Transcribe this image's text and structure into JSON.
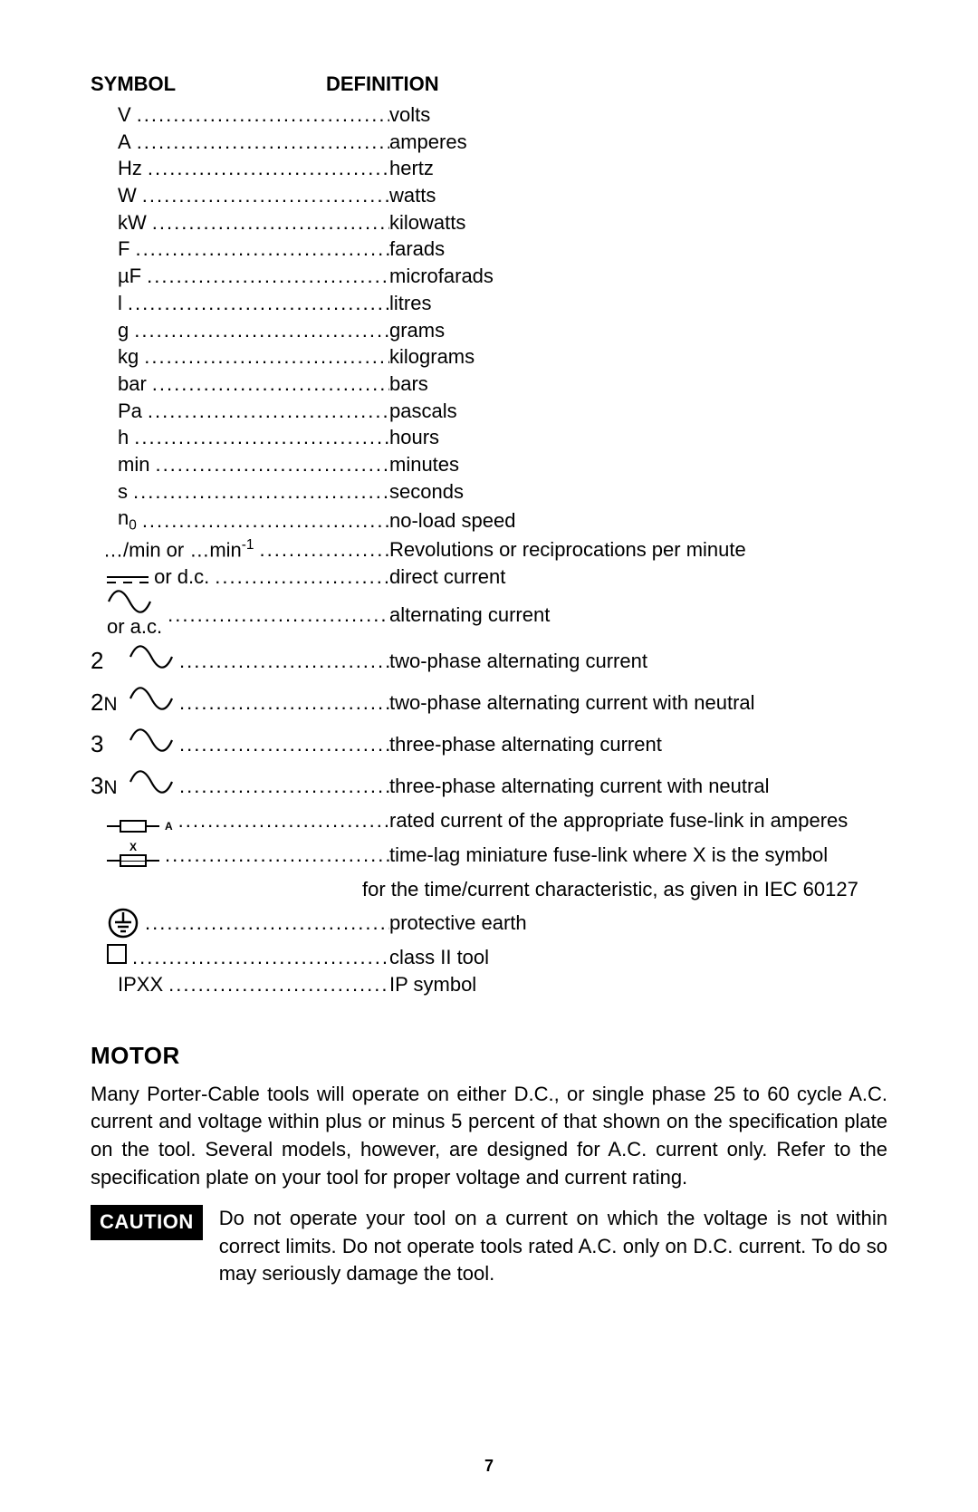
{
  "colors": {
    "background": "#ffffff",
    "text": "#000000",
    "caution_bg": "#000000",
    "caution_fg": "#ffffff"
  },
  "typography": {
    "body_fontsize_pt": 16,
    "header_fontsize_pt": 16,
    "section_title_fontsize_pt": 19
  },
  "headers": {
    "symbol": "SYMBOL",
    "definition": "DEFINITION"
  },
  "rows": [
    {
      "kind": "text",
      "symbol": "V",
      "definition": "volts"
    },
    {
      "kind": "text",
      "symbol": "A",
      "definition": "amperes"
    },
    {
      "kind": "text",
      "symbol": "Hz",
      "definition": "hertz"
    },
    {
      "kind": "text",
      "symbol": "W",
      "definition": "watts"
    },
    {
      "kind": "text",
      "symbol": "kW",
      "definition": "kilowatts"
    },
    {
      "kind": "text",
      "symbol": "F",
      "definition": "farads"
    },
    {
      "kind": "text",
      "symbol": "µF",
      "definition": "microfarads"
    },
    {
      "kind": "text",
      "symbol": "l",
      "definition": "litres"
    },
    {
      "kind": "text",
      "symbol": "g",
      "definition": "grams"
    },
    {
      "kind": "text",
      "symbol": "kg",
      "definition": "kilograms"
    },
    {
      "kind": "text",
      "symbol": "bar",
      "definition": "bars"
    },
    {
      "kind": "text",
      "symbol": "Pa",
      "definition": "pascals"
    },
    {
      "kind": "text",
      "symbol": "h",
      "definition": "hours"
    },
    {
      "kind": "text",
      "symbol": "min",
      "definition": "minutes"
    },
    {
      "kind": "text",
      "symbol": "s",
      "definition": "seconds"
    },
    {
      "kind": "n0",
      "symbol_pre": "n",
      "symbol_sub": "0",
      "definition": "no-load speed"
    },
    {
      "kind": "permin",
      "symbol_pre": "…/min  or …min",
      "symbol_sup": "-1",
      "definition": "Revolutions or reciprocations per minute"
    },
    {
      "kind": "dc",
      "trailer": " or d.c.",
      "definition": "direct current"
    },
    {
      "kind": "ac",
      "trailer": " or a.c.",
      "definition": "alternating current"
    },
    {
      "kind": "sine-prefix",
      "prefix": "2",
      "definition": "two-phase alternating current"
    },
    {
      "kind": "sine-prefix",
      "prefix": "2",
      "prefix_small": "N",
      "definition": "two-phase alternating current with neutral"
    },
    {
      "kind": "sine-prefix",
      "prefix": "3",
      "definition": "three-phase alternating current"
    },
    {
      "kind": "sine-prefix",
      "prefix": "3",
      "prefix_small": "N",
      "definition": "three-phase alternating current with neutral"
    },
    {
      "kind": "fuse-a",
      "label": "A",
      "definition": "rated current of the appropriate fuse-link in amperes"
    },
    {
      "kind": "fuse-x",
      "label": "X",
      "definition": "time-lag miniature fuse-link where X is the symbol",
      "definition_cont": "for the time/current characteristic, as given in IEC 60127"
    },
    {
      "kind": "earth",
      "definition": "protective earth"
    },
    {
      "kind": "class2",
      "definition": "class II tool"
    },
    {
      "kind": "text",
      "symbol": "IPXX",
      "definition": "IP symbol"
    }
  ],
  "motor": {
    "title": "MOTOR",
    "paragraph": "Many Porter-Cable tools will operate on either D.C., or single phase 25 to 60 cycle A.C. current and voltage within plus or minus 5 percent of that shown on the specification plate on the tool. Several models, however, are designed for A.C. current only. Refer to the specification plate on your tool for proper voltage and current rating.",
    "caution_label": "CAUTION",
    "caution_text": "Do not operate your tool on a current on which the voltage is not within correct limits. Do not operate tools rated A.C. only on D.C. current. To do so may seriously damage the tool."
  },
  "page_number": "7"
}
